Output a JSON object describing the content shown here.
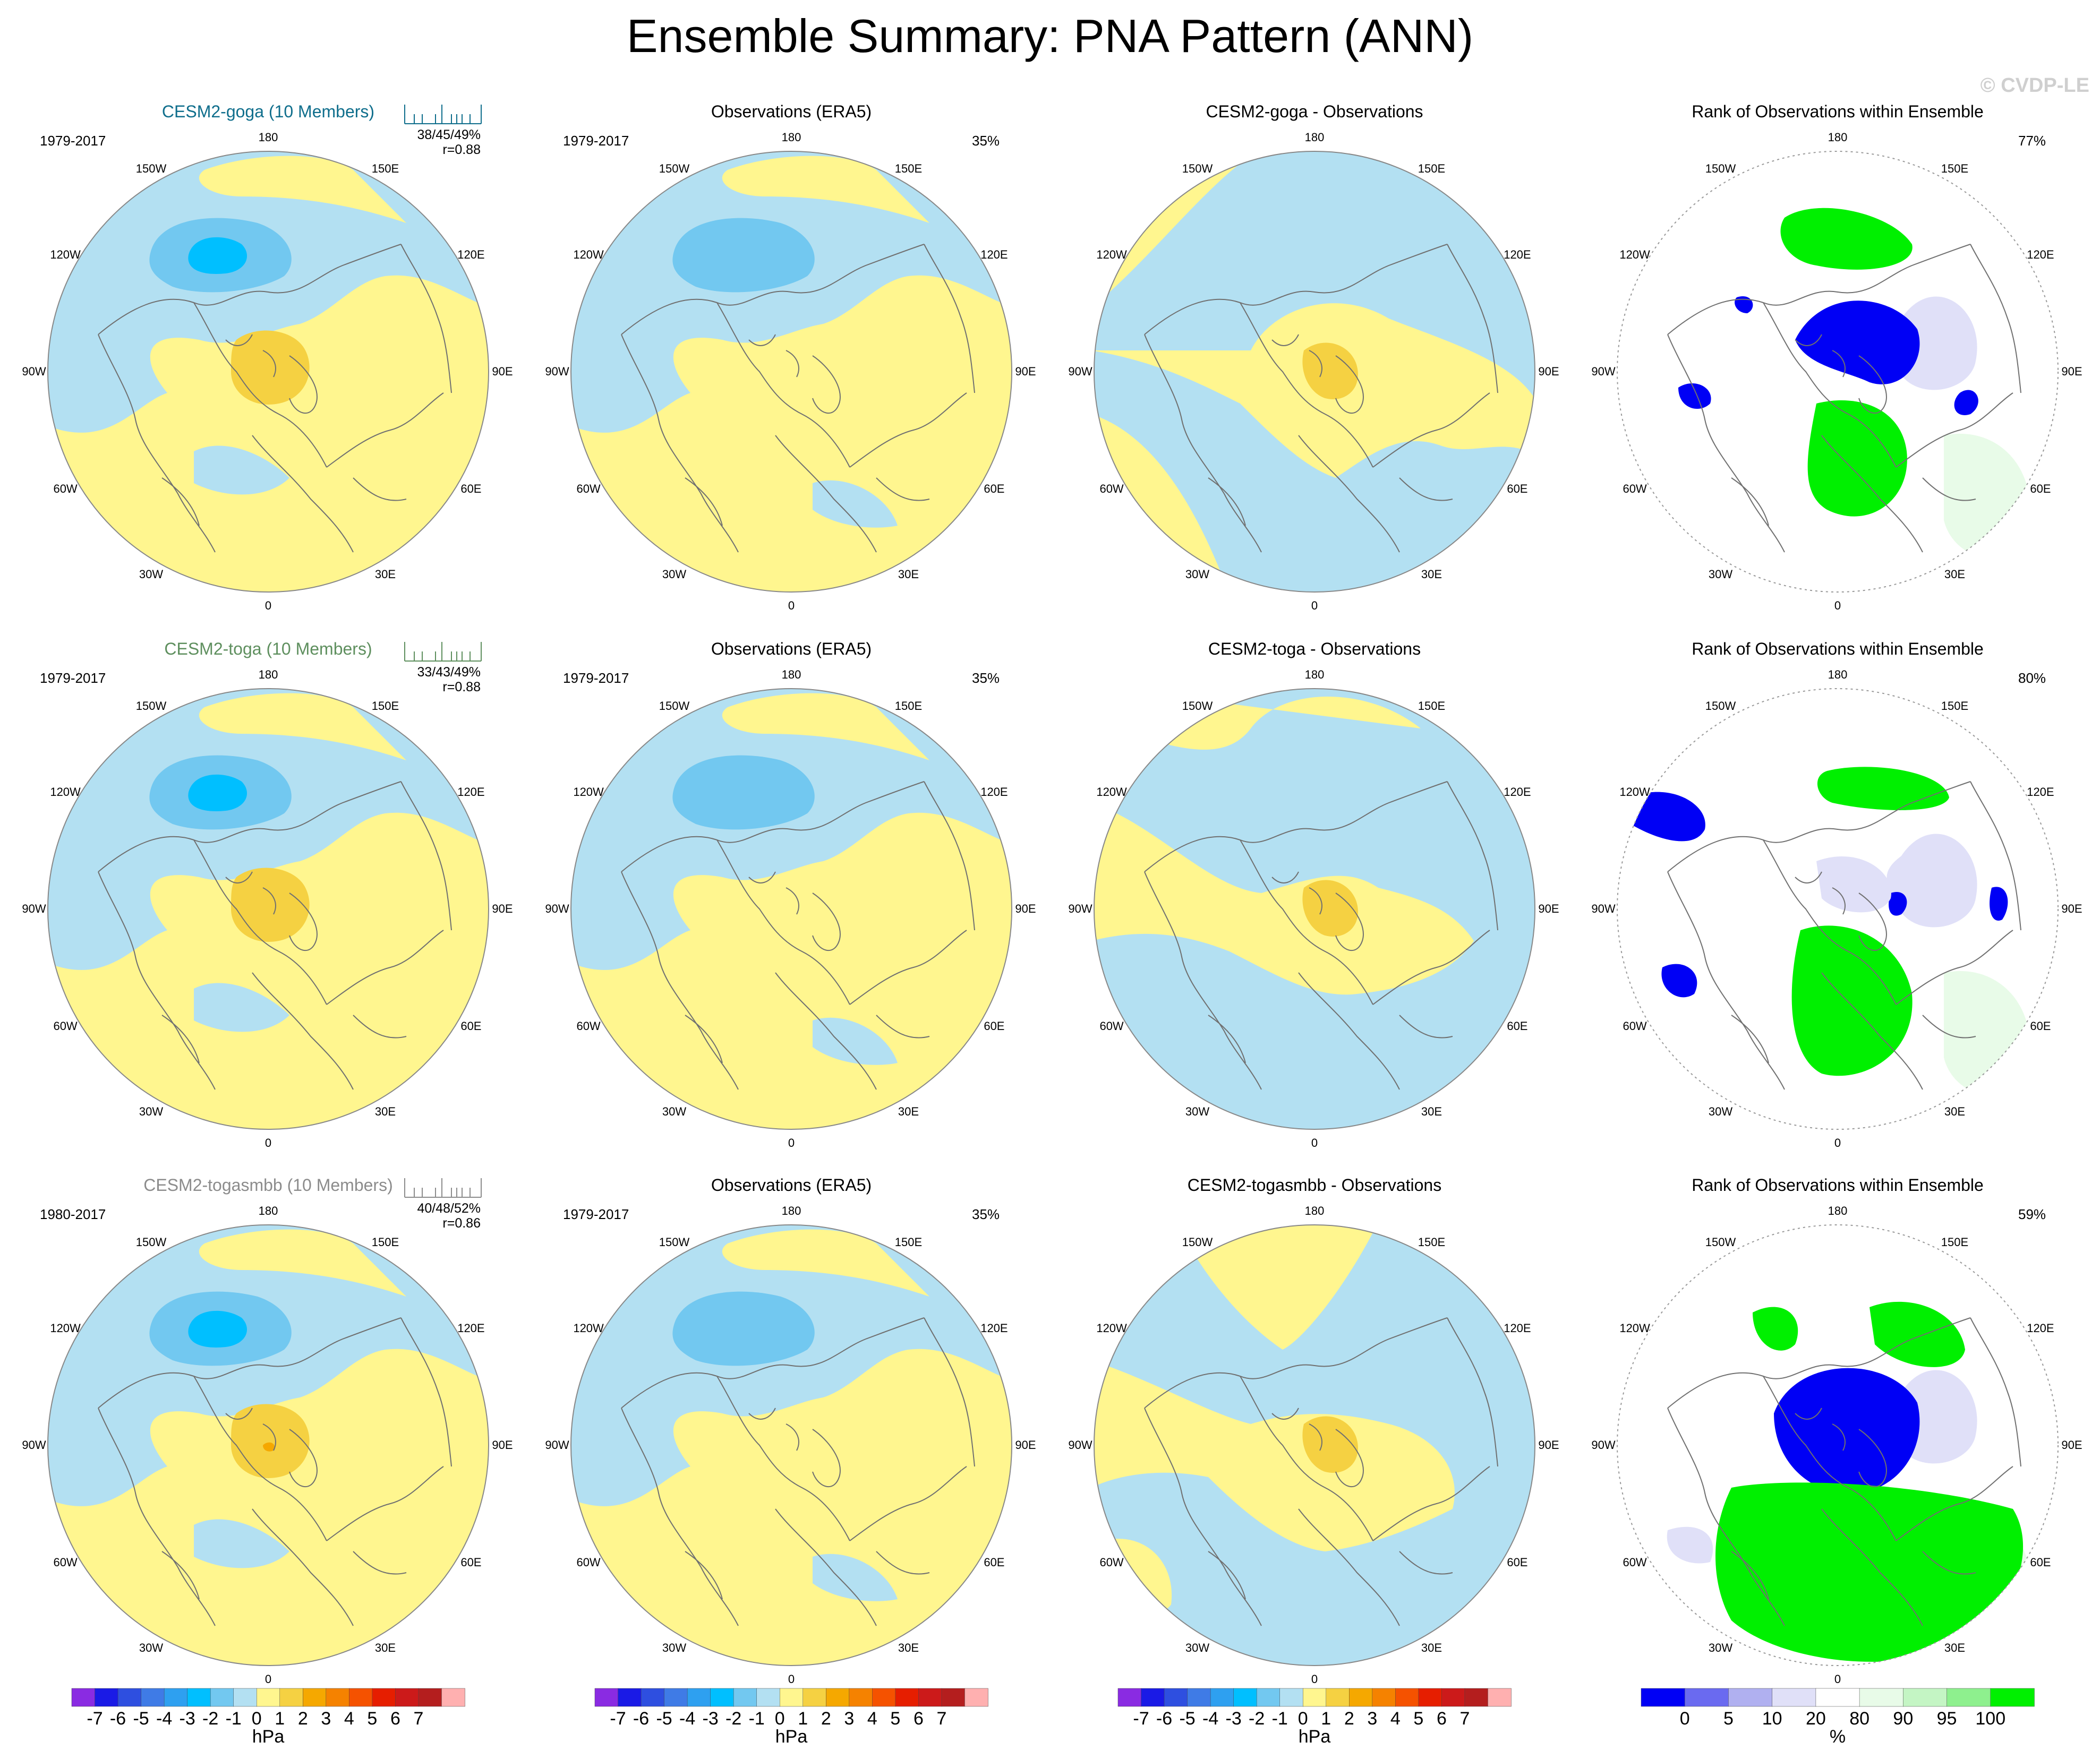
{
  "title": "Ensemble Summary: PNA Pattern (ANN)",
  "watermark": "© CVDP-LE",
  "rows": [
    {
      "model": {
        "title": "CESM2-goga (10 Members)",
        "color": "#0f6e8c",
        "period": "1979-2017",
        "stats": "38/45/49%",
        "r": "r=0.88"
      },
      "obs": {
        "title": "Observations (ERA5)",
        "period": "1979-2017",
        "pct": "35%"
      },
      "diff": {
        "title": "CESM2-goga - Observations"
      },
      "rank": {
        "title": "Rank of Observations within Ensemble",
        "pct": "77%"
      }
    },
    {
      "model": {
        "title": "CESM2-toga (10 Members)",
        "color": "#5e8f5e",
        "period": "1979-2017",
        "stats": "33/43/49%",
        "r": "r=0.88"
      },
      "obs": {
        "title": "Observations (ERA5)",
        "period": "1979-2017",
        "pct": "35%"
      },
      "diff": {
        "title": "CESM2-toga - Observations"
      },
      "rank": {
        "title": "Rank of Observations within Ensemble",
        "pct": "80%"
      }
    },
    {
      "model": {
        "title": "CESM2-togasmbb (10 Members)",
        "color": "#8c8c8c",
        "period": "1980-2017",
        "stats": "40/48/52%",
        "r": "r=0.86"
      },
      "obs": {
        "title": "Observations (ERA5)",
        "period": "1979-2017",
        "pct": "35%"
      },
      "diff": {
        "title": "CESM2-togasmbb - Observations"
      },
      "rank": {
        "title": "Rank of Observations within Ensemble",
        "pct": "59%"
      }
    }
  ],
  "lon_labels": [
    "180",
    "150E",
    "120E",
    "90E",
    "60E",
    "30E",
    "0",
    "30W",
    "60W",
    "90W",
    "120W",
    "150W"
  ],
  "colorbar_hpa": {
    "colors": [
      "#8a2be2",
      "#1a1ae6",
      "#2e4fe0",
      "#3f7be6",
      "#2ea0f0",
      "#00bfff",
      "#72c8f0",
      "#b3e0f2",
      "#fff68f",
      "#f5d142",
      "#f5a800",
      "#f58200",
      "#f55200",
      "#e61e00",
      "#cc1a1a",
      "#b41e1e",
      "#ffb0b0"
    ],
    "labels": [
      "-7",
      "-6",
      "-5",
      "-4",
      "-3",
      "-2",
      "-1",
      "0",
      "1",
      "2",
      "3",
      "4",
      "5",
      "6",
      "7"
    ],
    "unit": "hPa"
  },
  "colorbar_rank": {
    "colors": [
      "#0000f5",
      "#6a6af0",
      "#b0b0f0",
      "#e0e0f8",
      "#ffffff",
      "#e8fbe8",
      "#c4f5c4",
      "#8ef08e",
      "#00f000"
    ],
    "labels": [
      "0",
      "5",
      "10",
      "20",
      "80",
      "90",
      "95",
      "100"
    ],
    "unit": "%"
  },
  "map_colors": {
    "neg_light": "#b3e0f2",
    "neg_mid": "#72c8f0",
    "neg_strong": "#00bfff",
    "pos_light": "#fff68f",
    "pos_mid": "#f5d142",
    "pos_strong": "#f5a800",
    "rank_low": "#0000f5",
    "rank_high": "#00f000",
    "rank_lowlight": "#e0e0f8",
    "rank_highlight": "#e8fbe8",
    "coast": "#707070"
  }
}
